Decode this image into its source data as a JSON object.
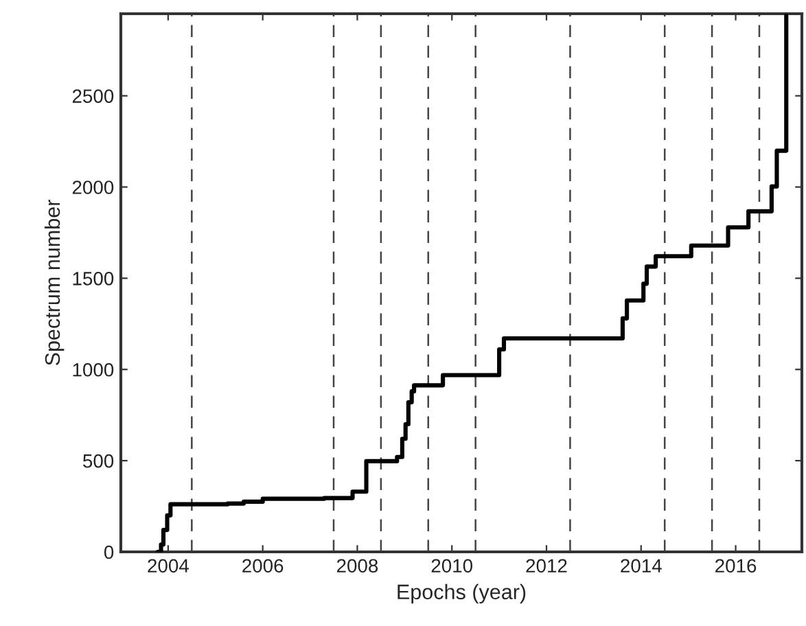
{
  "chart_data": {
    "type": "step",
    "xlabel": "Epochs (year)",
    "ylabel": "Spectrum number",
    "x": [
      2003.78,
      2003.85,
      2003.9,
      2003.98,
      2004.05,
      2005.26,
      2005.6,
      2006.0,
      2007.3,
      2007.9,
      2008.19,
      2008.84,
      2008.95,
      2009.02,
      2009.08,
      2009.15,
      2009.2,
      2009.81,
      2011.0,
      2011.1,
      2013.61,
      2013.7,
      2014.05,
      2014.12,
      2014.31,
      2015.06,
      2015.84,
      2016.27,
      2016.76,
      2016.87,
      2017.07
    ],
    "series": [
      {
        "color": "#000000",
        "values": [
          0,
          40,
          120,
          200,
          261,
          265,
          275,
          291,
          295,
          330,
          497,
          520,
          620,
          700,
          820,
          880,
          913,
          969,
          1110,
          1170,
          1280,
          1378,
          1470,
          1564,
          1621,
          1679,
          1779,
          1867,
          2003,
          2199,
          2940
        ]
      }
    ],
    "xlim": [
      2003,
      2017.4
    ],
    "ylim": [
      0,
      2950
    ],
    "xticks": [
      2004,
      2006,
      2008,
      2010,
      2012,
      2014,
      2016
    ],
    "yticks": [
      0,
      500,
      1000,
      1500,
      2000,
      2500
    ],
    "ref_lines": [
      {
        "axis": "x",
        "value": 2004.5,
        "line_style": "dashed"
      },
      {
        "axis": "x",
        "value": 2007.5,
        "line_style": "dashed"
      },
      {
        "axis": "x",
        "value": 2008.5,
        "line_style": "dashed"
      },
      {
        "axis": "x",
        "value": 2009.5,
        "line_style": "dashed"
      },
      {
        "axis": "x",
        "value": 2010.5,
        "line_style": "dashed"
      },
      {
        "axis": "x",
        "value": 2012.5,
        "line_style": "dashed"
      },
      {
        "axis": "x",
        "value": 2014.5,
        "line_style": "dashed"
      },
      {
        "axis": "x",
        "value": 2015.5,
        "line_style": "dashed"
      },
      {
        "axis": "x",
        "value": 2016.5,
        "line_style": "dashed"
      }
    ],
    "grid": false,
    "legend": false
  }
}
